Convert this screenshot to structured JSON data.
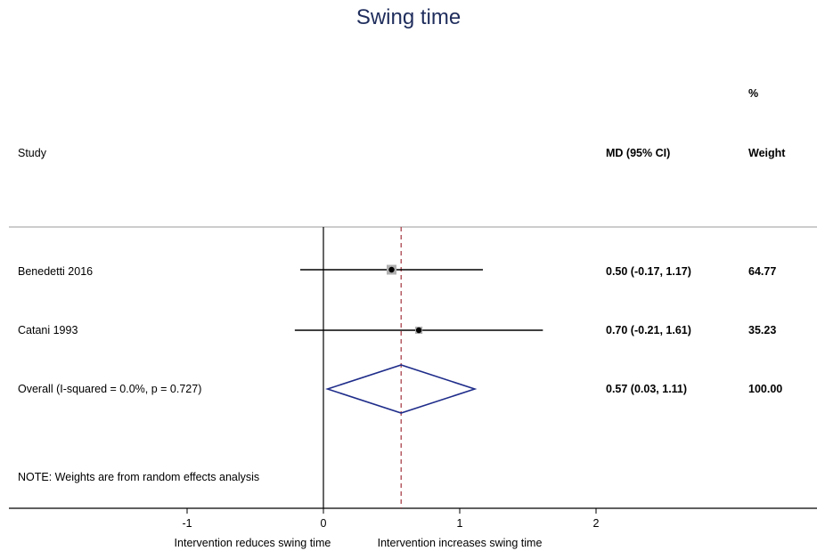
{
  "title": "Swing time",
  "headers": {
    "study": "Study",
    "md": "MD (95% CI)",
    "weight_pct": "%",
    "weight": "Weight"
  },
  "colors": {
    "title": "#1f2d5c",
    "diamond": "#1f2d8a",
    "ref_line": "#a3333d",
    "box": "#b0b0b0"
  },
  "chart_data": {
    "type": "forest",
    "title": "Swing time",
    "xlim": [
      -2.0,
      3.6
    ],
    "ticks": [
      -1,
      0,
      1,
      2
    ],
    "tick_labels": [
      "-1",
      "0",
      "1",
      "2"
    ],
    "xlabel_left": "Intervention reduces swing time",
    "xlabel_right": "Intervention increases swing time",
    "studies": [
      {
        "name": "Benedetti 2016",
        "md": 0.5,
        "lo": -0.17,
        "hi": 1.17,
        "ci_text": "0.50 (-0.17, 1.17)",
        "weight": 64.77,
        "weight_text": "64.77"
      },
      {
        "name": "Catani 1993",
        "md": 0.7,
        "lo": -0.21,
        "hi": 1.61,
        "ci_text": "0.70 (-0.21, 1.61)",
        "weight": 35.23,
        "weight_text": "35.23"
      }
    ],
    "overall": {
      "name": "Overall  (I-squared = 0.0%, p = 0.727)",
      "md": 0.57,
      "lo": 0.03,
      "hi": 1.11,
      "ci_text": "0.57 (0.03, 1.11)",
      "weight_text": "100.00"
    },
    "note": "NOTE: Weights are from random effects analysis"
  }
}
